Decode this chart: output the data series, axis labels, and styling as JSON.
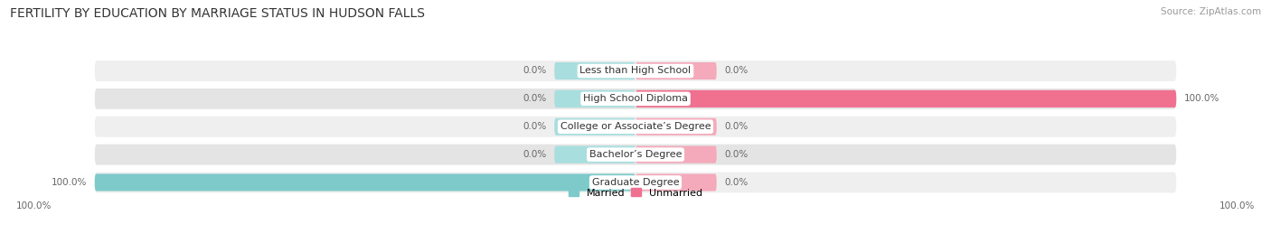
{
  "title": "FERTILITY BY EDUCATION BY MARRIAGE STATUS IN HUDSON FALLS",
  "source": "Source: ZipAtlas.com",
  "categories": [
    "Less than High School",
    "High School Diploma",
    "College or Associate’s Degree",
    "Bachelor’s Degree",
    "Graduate Degree"
  ],
  "married": [
    0.0,
    0.0,
    0.0,
    0.0,
    100.0
  ],
  "unmarried": [
    0.0,
    100.0,
    0.0,
    0.0,
    0.0
  ],
  "married_color": "#7ecaca",
  "unmarried_color": "#f07090",
  "married_zero_color": "#a8dede",
  "unmarried_zero_color": "#f4aabb",
  "bar_bg_color": "#efefef",
  "bar_bg_color2": "#e4e4e4",
  "legend_married": "Married",
  "legend_unmarried": "Unmarried",
  "xlim": 100,
  "left_label": "100.0%",
  "right_label": "100.0%",
  "title_fontsize": 10,
  "source_fontsize": 7.5,
  "label_fontsize": 7.5,
  "bar_label_fontsize": 7.5,
  "category_fontsize": 8,
  "default_segment": 15
}
